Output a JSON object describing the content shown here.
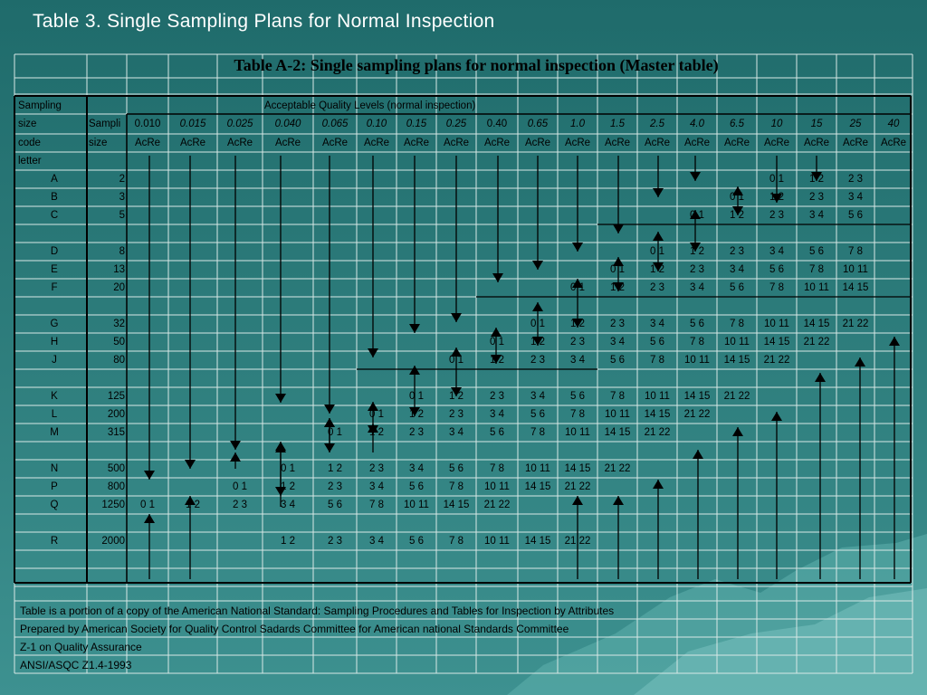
{
  "slide_title": "Table 3. Single Sampling Plans for Normal Inspection",
  "table_title": "Table A-2: Single sampling plans for normal inspection (Master table)",
  "headers": {
    "col1": [
      "Sampling",
      "size",
      "code",
      "letter"
    ],
    "col2": [
      "Sampli",
      "size"
    ],
    "aql_heading": "Acceptable Quality Levels (normal inspection)",
    "acre": "AcRe"
  },
  "aql_levels": [
    "0.010",
    "0.015",
    "0.025",
    "0.040",
    "0.065",
    "0.10",
    "0.15",
    "0.25",
    "0.40",
    "0.65",
    "1.0",
    "1.5",
    "2.5",
    "4.0",
    "6.5",
    "10",
    "15",
    "25",
    "40"
  ],
  "rows": [
    {
      "letter": "A",
      "size": "2"
    },
    {
      "letter": "B",
      "size": "3"
    },
    {
      "letter": "C",
      "size": "5"
    },
    {
      "letter": "D",
      "size": "8"
    },
    {
      "letter": "E",
      "size": "13"
    },
    {
      "letter": "F",
      "size": "20"
    },
    {
      "letter": "G",
      "size": "32"
    },
    {
      "letter": "H",
      "size": "50"
    },
    {
      "letter": "J",
      "size": "80"
    },
    {
      "letter": "K",
      "size": "125"
    },
    {
      "letter": "L",
      "size": "200"
    },
    {
      "letter": "M",
      "size": "315"
    },
    {
      "letter": "N",
      "size": "500"
    },
    {
      "letter": "P",
      "size": "800"
    },
    {
      "letter": "Q",
      "size": "1250"
    },
    {
      "letter": "R",
      "size": "2000"
    }
  ],
  "cells": [
    [
      "0 1",
      "1 2",
      "2 3"
    ],
    [
      "0 1",
      "1 2",
      "2 3",
      "3 4"
    ],
    [
      "0 1",
      "1 2",
      "2 3",
      "3 4",
      "5 6"
    ],
    [
      "0 1",
      "1 2",
      "2 3",
      "3 4",
      "5 6",
      "7 8"
    ],
    [
      "0 1",
      "1 2",
      "2 3",
      "3 4",
      "5 6",
      "7 8",
      "10 11"
    ],
    [
      "0 1",
      "1 2",
      "2 3",
      "3 4",
      "5 6",
      "7 8",
      "10 11",
      "14 15"
    ],
    [
      "0 1",
      "1 2",
      "2 3",
      "3 4",
      "5 6",
      "7 8",
      "10 11",
      "14 15",
      "21 22"
    ],
    [
      "0 1",
      "1 2",
      "2 3",
      "3 4",
      "5 6",
      "7 8",
      "10 11",
      "14 15",
      "21 22"
    ],
    [
      "0 1",
      "1 2",
      "2 3",
      "3 4",
      "5 6",
      "7 8",
      "10 11",
      "14 15",
      "21 22"
    ],
    [
      "0 1",
      "1 2",
      "2 3",
      "3 4",
      "5 6",
      "7 8",
      "10 11",
      "14 15",
      "21 22"
    ],
    [
      "0 1",
      "1 2",
      "2 3",
      "3 4",
      "5 6",
      "7 8",
      "10 11",
      "14 15",
      "21 22"
    ],
    [
      "0 1",
      "1 2",
      "2 3",
      "3 4",
      "5 6",
      "7 8",
      "10 11",
      "14 15",
      "21 22"
    ],
    [
      "0 1",
      "1 2",
      "2 3",
      "3 4",
      "5 6",
      "7 8",
      "10 11",
      "14 15",
      "21 22"
    ],
    [
      "0 1",
      "1 2",
      "2 3",
      "3 4",
      "5 6",
      "7 8",
      "10 11",
      "14 15",
      "21 22"
    ],
    [
      "0 1",
      "1 2",
      "2 3",
      "3 4",
      "5 6",
      "7 8",
      "10 11",
      "14 15",
      "21 22"
    ],
    [
      "1 2",
      "2 3",
      "3 4",
      "5 6",
      "7 8",
      "10 11",
      "14 15",
      "21 22"
    ]
  ],
  "footnotes": [
    "Table is a portion of a copy of the American National Standard: Sampling Procedures and Tables for Inspection by Attributes",
    "Prepared by American Society for Quality Control Sadards Committee for American national Standards Committee",
    "Z-1 on Quality Assurance",
    "ANSI/ASQC Z1.4-1993"
  ],
  "colors": {
    "background": "#2a7675",
    "grid": "#d8e8e6",
    "text": "#000000",
    "title": "#ffffff"
  }
}
